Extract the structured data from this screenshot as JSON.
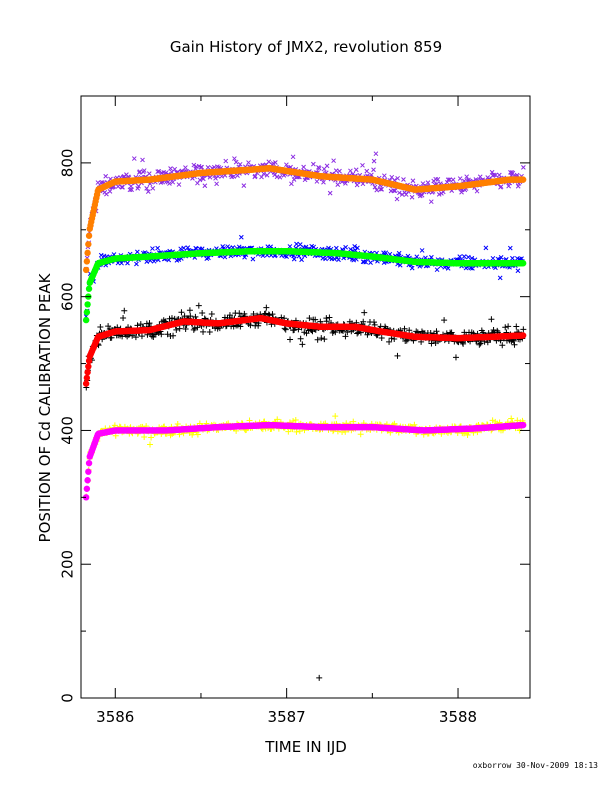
{
  "chart_data": {
    "type": "scatter",
    "title": "Gain History of JMX2, revolution 859",
    "xlabel": "TIME IN IJD",
    "ylabel": "POSITION OF Cd CALIBRATION PEAK",
    "xlim": [
      3585.8,
      3588.42
    ],
    "ylim": [
      0,
      900
    ],
    "xticks": [
      3586,
      3587,
      3588
    ],
    "yticks": [
      0,
      200,
      400,
      600,
      800
    ],
    "x_start": 3585.83,
    "x_end": 3588.38,
    "series": [
      {
        "marker": "x",
        "color": "#8a2be2",
        "role": "measurements",
        "scatter": 20,
        "x": [
          3585.83,
          3585.85,
          3585.9,
          3586.0,
          3586.2,
          3586.5,
          3586.8,
          3586.9,
          3587.2,
          3587.5,
          3587.75,
          3588.0,
          3588.3,
          3588.38
        ],
        "y": [
          640,
          700,
          760,
          772,
          775,
          785,
          790,
          792,
          780,
          775,
          760,
          765,
          775,
          775
        ]
      },
      {
        "marker": "line",
        "color": "#ff7f00",
        "role": "fit",
        "x": [
          3585.83,
          3585.85,
          3585.9,
          3586.0,
          3586.2,
          3586.5,
          3586.8,
          3586.9,
          3587.2,
          3587.5,
          3587.75,
          3588.0,
          3588.3,
          3588.38
        ],
        "y": [
          640,
          700,
          760,
          772,
          775,
          785,
          790,
          792,
          780,
          775,
          760,
          765,
          775,
          775
        ]
      },
      {
        "marker": "x",
        "color": "#0000ff",
        "role": "measurements",
        "scatter": 14,
        "x": [
          3585.83,
          3585.85,
          3585.9,
          3586.0,
          3586.2,
          3586.5,
          3586.8,
          3587.0,
          3587.3,
          3587.5,
          3587.75,
          3588.0,
          3588.3,
          3588.38
        ],
        "y": [
          565,
          620,
          650,
          657,
          660,
          665,
          668,
          668,
          665,
          660,
          652,
          650,
          650,
          650
        ]
      },
      {
        "marker": "line",
        "color": "#00ff00",
        "role": "fit",
        "x": [
          3585.83,
          3585.85,
          3585.9,
          3586.0,
          3586.2,
          3586.5,
          3586.8,
          3587.0,
          3587.3,
          3587.5,
          3587.75,
          3588.0,
          3588.3,
          3588.38
        ],
        "y": [
          565,
          620,
          650,
          657,
          660,
          665,
          668,
          668,
          665,
          660,
          652,
          650,
          650,
          650
        ]
      },
      {
        "marker": "+",
        "color": "#000000",
        "role": "measurements",
        "scatter": 18,
        "outliers": [
          {
            "x": 3587.19,
            "y": 30
          }
        ],
        "x": [
          3585.83,
          3585.85,
          3585.9,
          3586.0,
          3586.2,
          3586.4,
          3586.6,
          3586.85,
          3587.0,
          3587.2,
          3587.4,
          3587.55,
          3587.75,
          3588.0,
          3588.2,
          3588.38
        ],
        "y": [
          470,
          510,
          540,
          548,
          550,
          563,
          560,
          568,
          560,
          555,
          555,
          548,
          540,
          538,
          540,
          542
        ]
      },
      {
        "marker": "line",
        "color": "#ff0000",
        "role": "fit",
        "x": [
          3585.83,
          3585.85,
          3585.9,
          3586.0,
          3586.2,
          3586.4,
          3586.6,
          3586.85,
          3587.0,
          3587.2,
          3587.4,
          3587.55,
          3587.75,
          3588.0,
          3588.2,
          3588.38
        ],
        "y": [
          470,
          510,
          540,
          548,
          550,
          563,
          560,
          568,
          560,
          555,
          555,
          548,
          540,
          538,
          540,
          542
        ]
      },
      {
        "marker": "+",
        "color": "#ffff00",
        "role": "measurements",
        "scatter": 10,
        "x": [
          3585.83,
          3585.85,
          3585.9,
          3586.0,
          3586.3,
          3586.6,
          3586.9,
          3587.2,
          3587.5,
          3587.8,
          3588.1,
          3588.38
        ],
        "y": [
          300,
          360,
          395,
          400,
          400,
          405,
          408,
          405,
          405,
          400,
          403,
          408
        ]
      },
      {
        "marker": "line",
        "color": "#ff00ff",
        "role": "fit",
        "x": [
          3585.83,
          3585.85,
          3585.9,
          3586.0,
          3586.3,
          3586.6,
          3586.9,
          3587.2,
          3587.5,
          3587.8,
          3588.1,
          3588.38
        ],
        "y": [
          300,
          360,
          395,
          400,
          400,
          405,
          408,
          405,
          405,
          400,
          403,
          408
        ]
      }
    ]
  },
  "footer": {
    "credit": "oxborrow 30-Nov-2009 18:13"
  }
}
